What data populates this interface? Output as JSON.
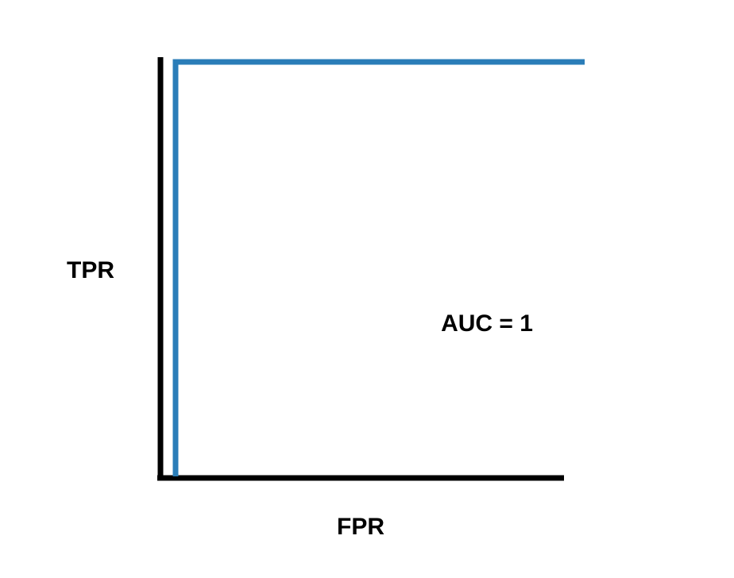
{
  "chart_data": {
    "type": "line",
    "title": "",
    "xlabel": "FPR",
    "ylabel": "TPR",
    "xlim": [
      0,
      1
    ],
    "ylim": [
      0,
      1
    ],
    "grid": false,
    "series": [
      {
        "x": [
          0,
          0,
          1
        ],
        "y": [
          0,
          1,
          1
        ]
      }
    ],
    "annotations": [
      {
        "text": "AUC = 1"
      }
    ]
  },
  "colors": {
    "curve": "#2a7db8",
    "axes": "#000000"
  }
}
